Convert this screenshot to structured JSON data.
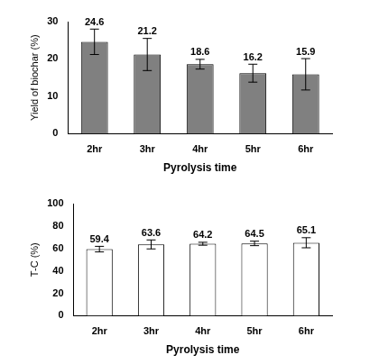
{
  "chart_data": [
    {
      "type": "bar",
      "x_label": "Pyrolysis time",
      "y_label": "Yield of biochar (%)",
      "categories": [
        "2hr",
        "3hr",
        "4hr",
        "5hr",
        "6hr"
      ],
      "values": [
        24.6,
        21.2,
        18.6,
        16.2,
        15.9
      ],
      "errors": [
        3.4,
        4.3,
        1.3,
        2.4,
        4.2
      ],
      "color": "#808080",
      "ylim": [
        0,
        30
      ],
      "yticks": [
        0,
        10,
        20,
        30
      ],
      "grid": false,
      "data_labels": true
    },
    {
      "type": "bar",
      "x_label": "Pyrolysis time",
      "y_label": "T-C (%)",
      "categories": [
        "2hr",
        "3hr",
        "4hr",
        "5hr",
        "6hr"
      ],
      "values": [
        59.4,
        63.6,
        64.2,
        64.5,
        65.1
      ],
      "errors": [
        2.5,
        4.0,
        1.3,
        2.0,
        4.5
      ],
      "color": "#ffffff",
      "ylim": [
        0,
        100
      ],
      "yticks": [
        0,
        20,
        40,
        60,
        80,
        100
      ],
      "grid": false,
      "data_labels": true
    }
  ]
}
